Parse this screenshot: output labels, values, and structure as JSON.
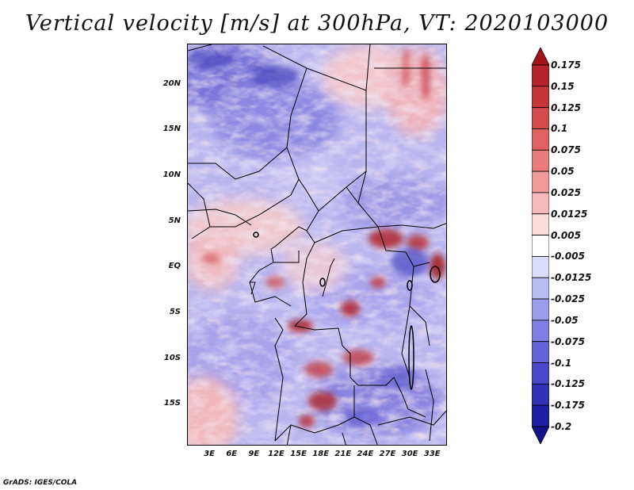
{
  "title": "Vertical velocity [m/s] at 300hPa, VT: 2020103000",
  "credit": "GrADS: IGES/COLA",
  "map": {
    "lon_range": [
      0,
      35
    ],
    "lat_range": [
      -19.5,
      24.5
    ],
    "y_ticks": [
      {
        "label": "20N",
        "lat": 20
      },
      {
        "label": "15N",
        "lat": 15
      },
      {
        "label": "10N",
        "lat": 10
      },
      {
        "label": "5N",
        "lat": 5
      },
      {
        "label": "EQ",
        "lat": 0
      },
      {
        "label": "5S",
        "lat": -5
      },
      {
        "label": "10S",
        "lat": -10
      },
      {
        "label": "15S",
        "lat": -15
      }
    ],
    "x_ticks": [
      {
        "label": "3E",
        "lon": 3
      },
      {
        "label": "6E",
        "lon": 6
      },
      {
        "label": "9E",
        "lon": 9
      },
      {
        "label": "12E",
        "lon": 12
      },
      {
        "label": "15E",
        "lon": 15
      },
      {
        "label": "18E",
        "lon": 18
      },
      {
        "label": "21E",
        "lon": 21
      },
      {
        "label": "24E",
        "lon": 24
      },
      {
        "label": "27E",
        "lon": 27
      },
      {
        "label": "30E",
        "lon": 30
      },
      {
        "label": "33E",
        "lon": 33
      }
    ]
  },
  "colorbar": {
    "levels": [
      "0.175",
      "0.15",
      "0.125",
      "0.1",
      "0.075",
      "0.05",
      "0.025",
      "0.0125",
      "0.005",
      "-0.005",
      "-0.0125",
      "-0.025",
      "-0.05",
      "-0.075",
      "-0.1",
      "-0.125",
      "-0.175",
      "-0.2"
    ],
    "colors": [
      "#a0141a",
      "#b4242a",
      "#c4363a",
      "#d24c4c",
      "#de6262",
      "#e87c7c",
      "#f09a9a",
      "#f6baba",
      "#fbdcdc",
      "#ffffff",
      "#dcdcfc",
      "#bcbcf4",
      "#9c9cec",
      "#8080e4",
      "#6464d8",
      "#4848c8",
      "#3232b4",
      "#1e1ea0",
      "#12128c"
    ]
  }
}
